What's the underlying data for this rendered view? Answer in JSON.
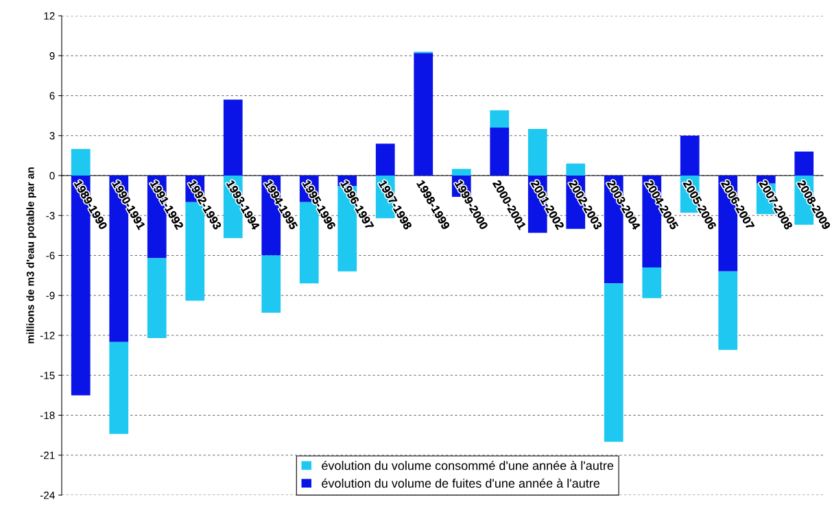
{
  "chart_data": {
    "type": "bar",
    "stacked": true,
    "ylabel": "millions de m3 d'eau potable par an",
    "categories": [
      "1989-1990",
      "1990-1991",
      "1991-1992",
      "1992-1993",
      "1993-1994",
      "1994-1995",
      "1995-1996",
      "1996-1997",
      "1997-1998",
      "1998-1999",
      "1999-2000",
      "2000-2001",
      "2001-2002",
      "2002-2003",
      "2003-2004",
      "2004-2005",
      "2005-2006",
      "2006-2007",
      "2007-2008",
      "2008-2009"
    ],
    "series": [
      {
        "name": "évolution du volume de fuites d'une année à l'autre",
        "color": "#0a14e6",
        "values": [
          -16.5,
          -12.5,
          -6.2,
          -2.0,
          5.7,
          -6.0,
          -2.0,
          -0.8,
          2.4,
          9.2,
          -1.6,
          3.6,
          -4.3,
          -4.0,
          -8.1,
          -6.9,
          3.0,
          -7.2,
          -0.6,
          1.8
        ]
      },
      {
        "name": "évolution du volume consommé d'une année à l'autre",
        "color": "#1ec8f0",
        "values": [
          2.0,
          -6.9,
          -6.0,
          -7.4,
          -4.7,
          -4.3,
          -6.1,
          -6.4,
          -3.2,
          0.1,
          0.5,
          1.3,
          3.5,
          0.9,
          -11.9,
          -2.3,
          -2.8,
          -5.9,
          -2.3,
          -3.7
        ]
      }
    ],
    "ylim": [
      -24,
      12
    ],
    "yticks": [
      -24,
      -21,
      -18,
      -15,
      -12,
      -9,
      -6,
      -3,
      0,
      3,
      6,
      9,
      12
    ],
    "grid": "y",
    "legend": "bottom"
  }
}
